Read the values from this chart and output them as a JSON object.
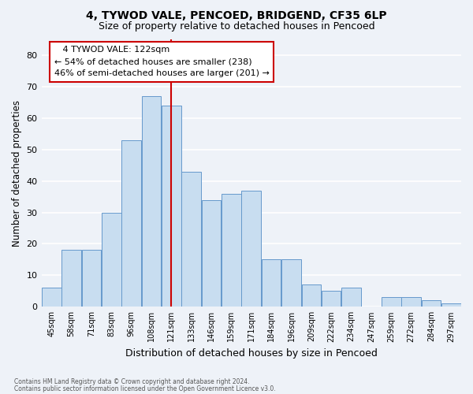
{
  "title1": "4, TYWOD VALE, PENCOED, BRIDGEND, CF35 6LP",
  "title2": "Size of property relative to detached houses in Pencoed",
  "xlabel": "Distribution of detached houses by size in Pencoed",
  "ylabel": "Number of detached properties",
  "footer1": "Contains HM Land Registry data © Crown copyright and database right 2024.",
  "footer2": "Contains public sector information licensed under the Open Government Licence v3.0.",
  "annotation_line1": "4 TYWOD VALE: 122sqm",
  "annotation_line2": "← 54% of detached houses are smaller (238)",
  "annotation_line3": "46% of semi-detached houses are larger (201) →",
  "bar_color": "#c8ddf0",
  "bar_edge_color": "#6699cc",
  "vline_color": "#cc0000",
  "categories": [
    "45sqm",
    "58sqm",
    "71sqm",
    "83sqm",
    "96sqm",
    "108sqm",
    "121sqm",
    "133sqm",
    "146sqm",
    "159sqm",
    "171sqm",
    "184sqm",
    "196sqm",
    "209sqm",
    "222sqm",
    "234sqm",
    "247sqm",
    "259sqm",
    "272sqm",
    "284sqm",
    "297sqm"
  ],
  "values": [
    6,
    18,
    18,
    30,
    53,
    67,
    64,
    43,
    34,
    36,
    37,
    15,
    15,
    7,
    5,
    6,
    0,
    3,
    3,
    2,
    1
  ],
  "ylim": [
    0,
    85
  ],
  "yticks": [
    0,
    10,
    20,
    30,
    40,
    50,
    60,
    70,
    80
  ],
  "bg_color": "#eef2f8",
  "grid_color": "#ffffff",
  "annotation_box_color": "#ffffff",
  "annotation_box_edge": "#cc0000",
  "vline_index": 6
}
